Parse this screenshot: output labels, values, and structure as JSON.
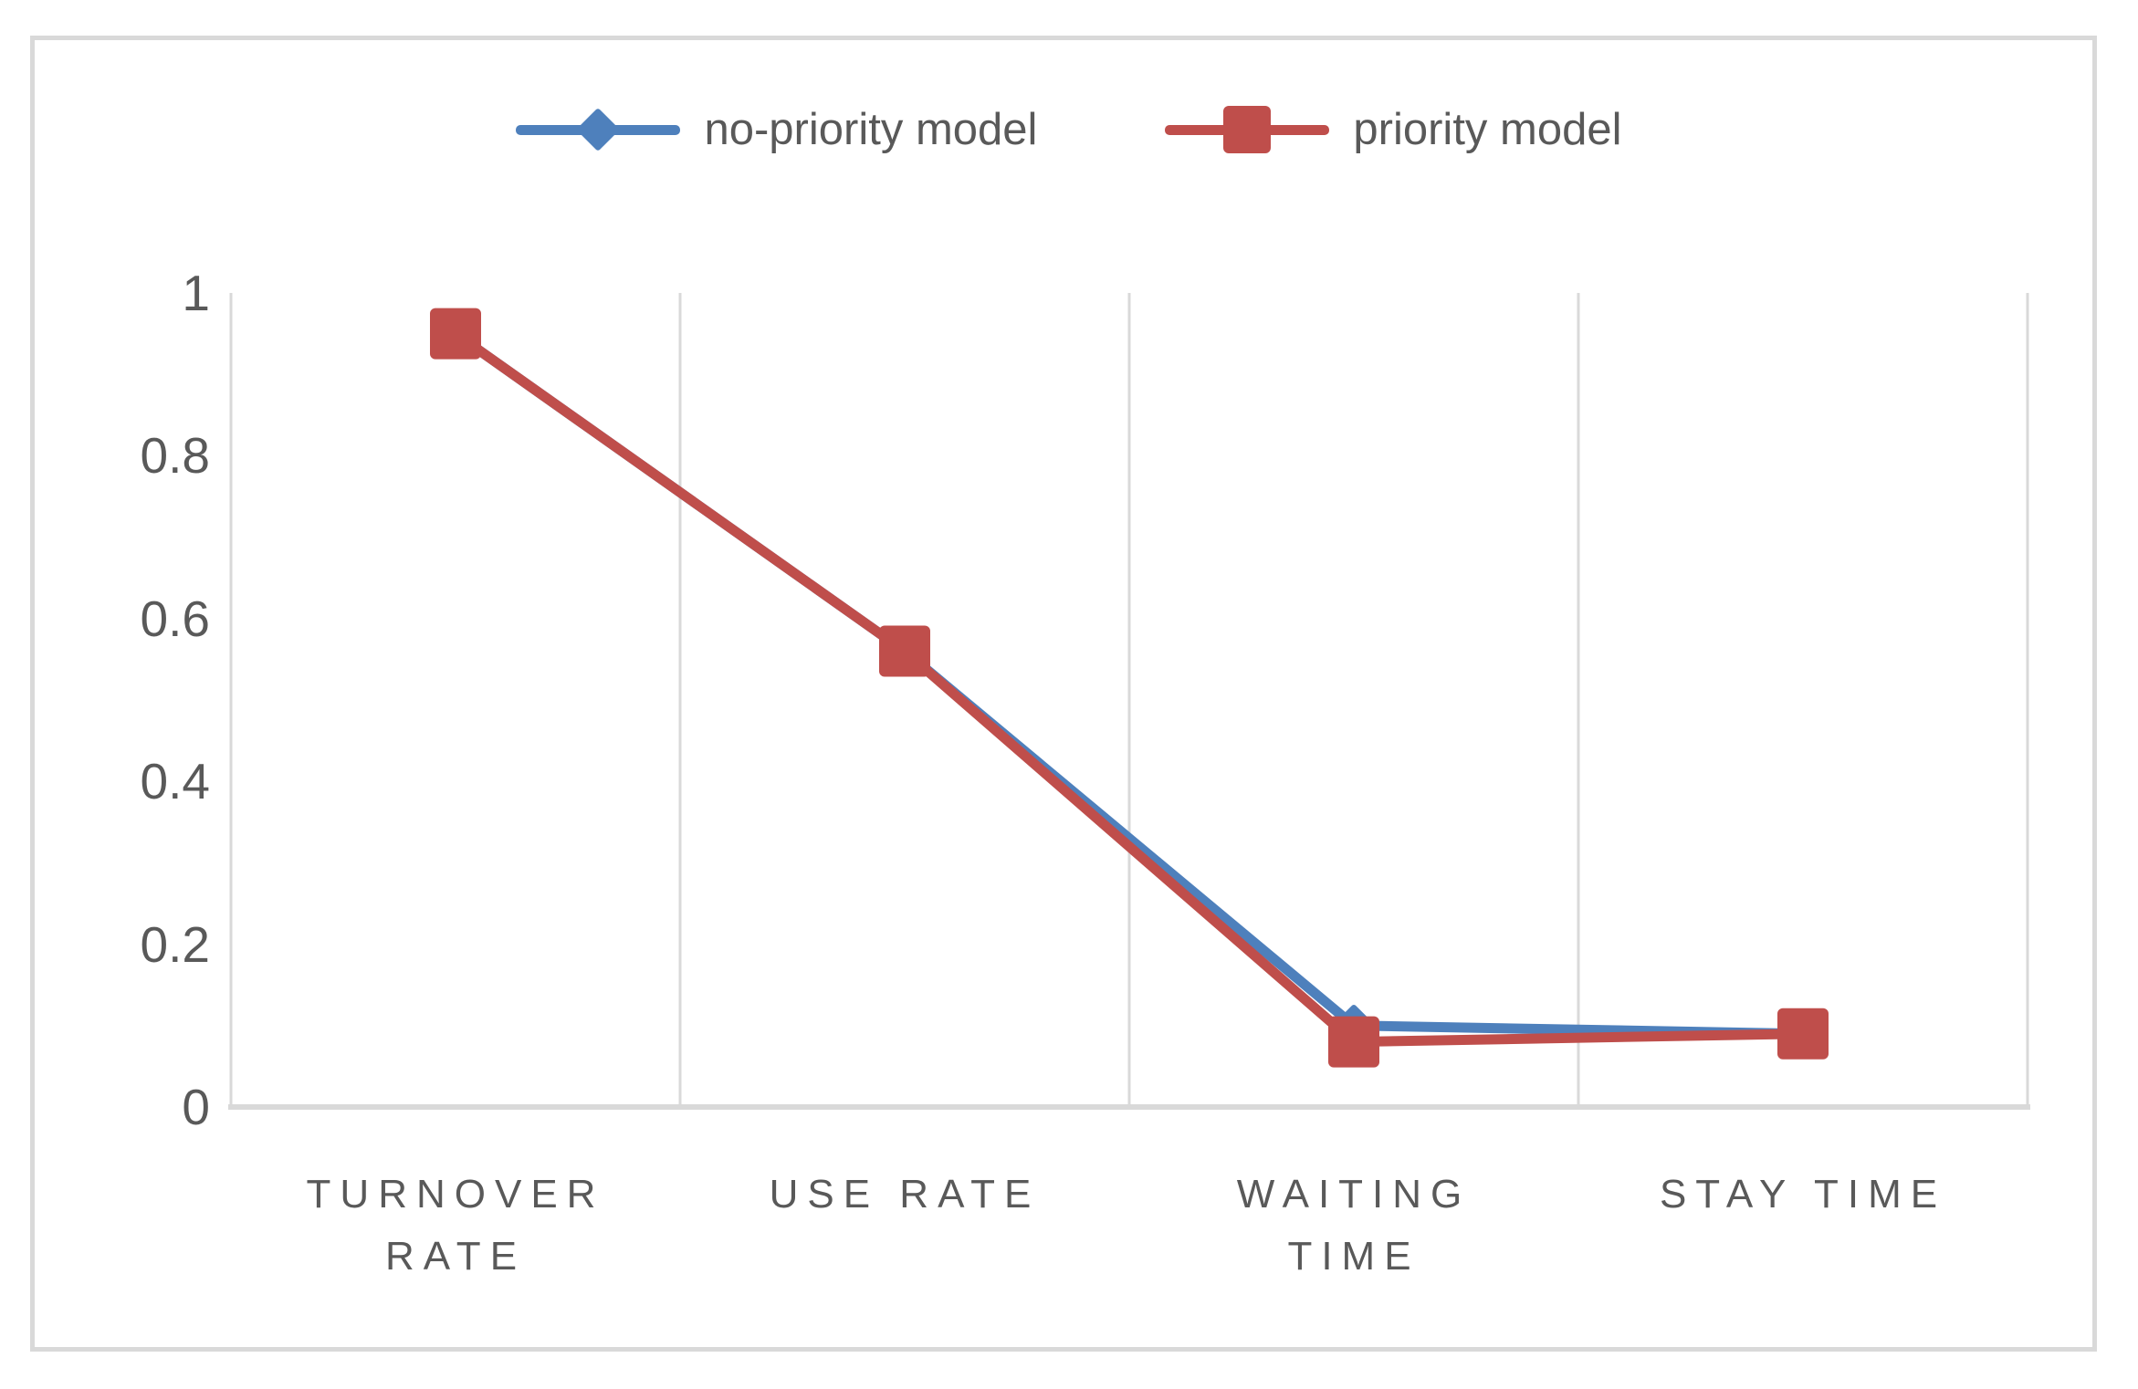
{
  "figure": {
    "background": "#FFFFFF",
    "border_color": "#D9D9D9"
  },
  "chart_data": {
    "type": "line",
    "title": "",
    "categories": [
      "TURNOVER RATE",
      "USE RATE",
      "WAITING TIME",
      "STAY TIME"
    ],
    "series": [
      {
        "name": "no-priority model",
        "color": "#4E80BC",
        "marker": "diamond",
        "values": [
          0.95,
          0.56,
          0.1,
          0.09
        ]
      },
      {
        "name": "priority model",
        "color": "#BF4E4B",
        "marker": "square",
        "values": [
          0.95,
          0.56,
          0.08,
          0.09
        ]
      }
    ],
    "ylim": [
      0,
      1
    ],
    "yticks": [
      1,
      0.8,
      0.6,
      0.4,
      0.2,
      0
    ],
    "ytick_labels": [
      "1",
      "0.8",
      "0.6",
      "0.4",
      "0.2",
      "0"
    ],
    "xlabel": "",
    "ylabel": "",
    "grid": "vertical-category-gridlines-only",
    "legend_position": "top-center",
    "text_color": "#595959",
    "gridline_color": "#D9D9D9"
  }
}
